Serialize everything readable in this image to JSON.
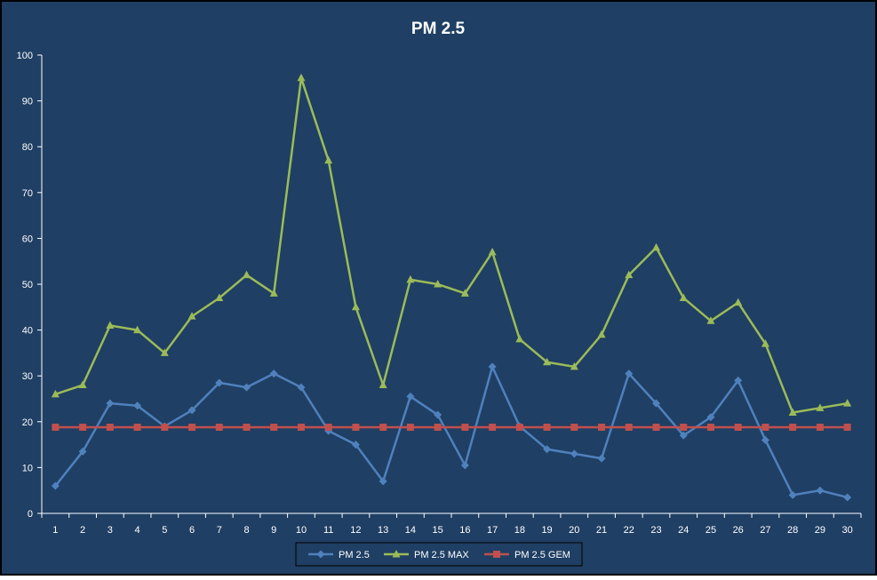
{
  "chart_data": {
    "type": "line",
    "title": "PM 2.5",
    "xlabel": "",
    "ylabel": "",
    "categories": [
      "1",
      "2",
      "3",
      "4",
      "5",
      "6",
      "7",
      "8",
      "9",
      "10",
      "11",
      "12",
      "13",
      "14",
      "15",
      "16",
      "17",
      "18",
      "19",
      "20",
      "21",
      "22",
      "23",
      "24",
      "25",
      "26",
      "27",
      "28",
      "29",
      "30"
    ],
    "ylim": [
      0,
      100
    ],
    "yticks": [
      "0",
      "10",
      "20",
      "30",
      "40",
      "50",
      "60",
      "70",
      "80",
      "90",
      "100"
    ],
    "grid": false,
    "legend_position": "bottom",
    "series": [
      {
        "name": "PM 2.5",
        "color": "#4f81bd",
        "marker": "diamond",
        "values": [
          6,
          13.5,
          24,
          23.5,
          19,
          22.5,
          28.5,
          27.5,
          30.5,
          27.5,
          18,
          15,
          7,
          25.5,
          21.5,
          10.5,
          32,
          19,
          14,
          13,
          12,
          30.5,
          24,
          17,
          21,
          29,
          16,
          4,
          5,
          3.5
        ]
      },
      {
        "name": "PM 2.5 MAX",
        "color": "#9bbb59",
        "marker": "triangle",
        "values": [
          26,
          28,
          41,
          40,
          35,
          43,
          47,
          52,
          48,
          95,
          77,
          45,
          28,
          51,
          50,
          48,
          57,
          38,
          33,
          32,
          39,
          52,
          58,
          47,
          42,
          46,
          37,
          22,
          23,
          24
        ]
      },
      {
        "name": "PM 2.5 GEM",
        "color": "#c0504d",
        "marker": "square",
        "values": [
          18.8,
          18.8,
          18.8,
          18.8,
          18.8,
          18.8,
          18.8,
          18.8,
          18.8,
          18.8,
          18.8,
          18.8,
          18.8,
          18.8,
          18.8,
          18.8,
          18.8,
          18.8,
          18.8,
          18.8,
          18.8,
          18.8,
          18.8,
          18.8,
          18.8,
          18.8,
          18.8,
          18.8,
          18.8,
          18.8
        ]
      }
    ]
  },
  "colors": {
    "background": "#1f3f64",
    "outer_border": "#000000",
    "axis": "#ffffff",
    "text": "#ffffff"
  }
}
